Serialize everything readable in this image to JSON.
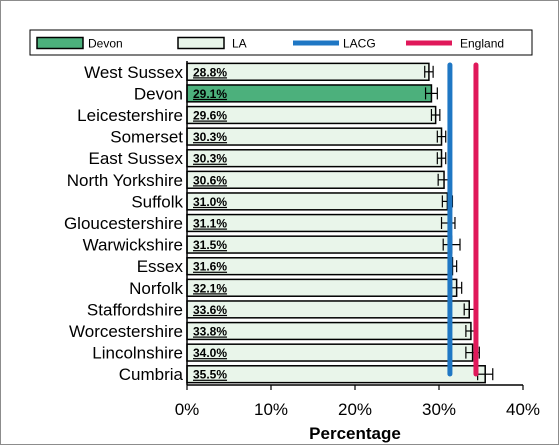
{
  "chart_data": {
    "type": "bar",
    "orientation": "horizontal",
    "categories": [
      "West Sussex",
      "Devon",
      "Leicestershire",
      "Somerset",
      "East Sussex",
      "North Yorkshire",
      "Suffolk",
      "Gloucestershire",
      "Warwickshire",
      "Essex",
      "Norfolk",
      "Staffordshire",
      "Worcestershire",
      "Lincolnshire",
      "Cumbria"
    ],
    "values": [
      28.8,
      29.1,
      29.6,
      30.3,
      30.3,
      30.6,
      31.0,
      31.1,
      31.5,
      31.6,
      32.1,
      33.6,
      33.8,
      34.0,
      35.5
    ],
    "value_labels": [
      "28.8%",
      "29.1%",
      "29.6%",
      "30.3%",
      "30.3%",
      "30.6%",
      "31.0%",
      "31.1%",
      "31.5%",
      "31.6%",
      "32.1%",
      "33.6%",
      "33.8%",
      "34.0%",
      "35.5%"
    ],
    "error_low": [
      28.3,
      28.4,
      29.1,
      29.8,
      29.8,
      29.9,
      30.4,
      30.3,
      30.5,
      31.1,
      31.5,
      33.0,
      33.2,
      33.2,
      34.6
    ],
    "error_high": [
      29.3,
      29.8,
      30.1,
      30.8,
      30.8,
      31.3,
      31.6,
      31.9,
      32.5,
      32.1,
      32.7,
      34.2,
      34.4,
      34.8,
      36.4
    ],
    "highlight": "Devon",
    "reference_lines": [
      {
        "name": "LACG",
        "value": 31.3,
        "color": "#1f77c4"
      },
      {
        "name": "England",
        "value": 34.4,
        "color": "#e0185a"
      }
    ],
    "legend": [
      {
        "name": "Devon",
        "kind": "box",
        "color": "#4cb07c"
      },
      {
        "name": "LA",
        "kind": "box",
        "color": "#e9f5ea"
      },
      {
        "name": "LACG",
        "kind": "line",
        "color": "#1f77c4"
      },
      {
        "name": "England",
        "kind": "line",
        "color": "#e0185a"
      }
    ],
    "legend_position": "top",
    "xlim": [
      0,
      40
    ],
    "xticks": [
      0,
      10,
      20,
      30,
      40
    ],
    "xtick_labels": [
      "0%",
      "10%",
      "20%",
      "30%",
      "40%"
    ],
    "xlabel": "Percentage",
    "ylabel": "",
    "title": "",
    "grid": false,
    "colors": {
      "bar_fill": "#e9f5ea",
      "highlight_fill": "#4cb07c",
      "bar_stroke": "#000000"
    }
  }
}
